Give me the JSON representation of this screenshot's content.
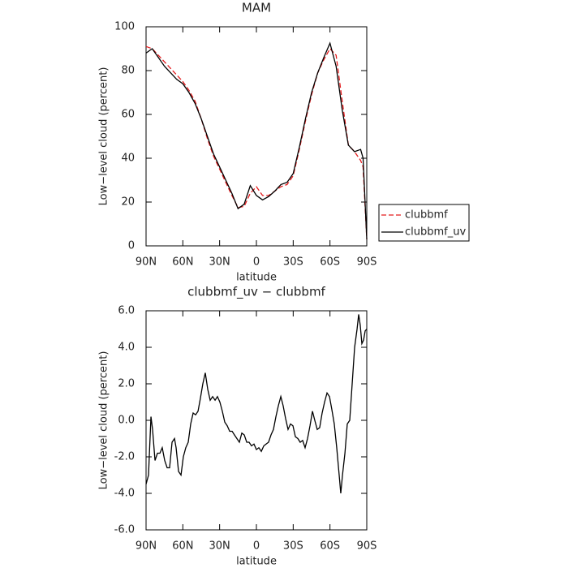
{
  "chart_data": [
    {
      "type": "line",
      "title": "MAM",
      "xlabel": "latitude",
      "ylabel": "Low−level cloud (percent)",
      "x": [
        90,
        85,
        80,
        75,
        70,
        65,
        60,
        55,
        50,
        45,
        40,
        35,
        30,
        25,
        20,
        15,
        10,
        5,
        0,
        -5,
        -10,
        -15,
        -20,
        -25,
        -30,
        -35,
        -40,
        -45,
        -50,
        -55,
        -60,
        -65,
        -70,
        -75,
        -80,
        -85,
        -87,
        -90
      ],
      "series": [
        {
          "name": "clubbmf",
          "color": "#e41a1c",
          "linestyle": "dashed",
          "values": [
            91,
            90,
            87,
            84,
            81,
            78,
            75,
            71,
            66,
            58,
            49,
            41,
            35,
            29,
            23,
            17.5,
            18,
            24,
            27,
            23,
            23,
            25,
            27,
            28,
            32,
            44,
            57,
            69,
            79,
            85,
            90,
            87,
            66,
            46,
            43,
            39,
            36,
            3
          ]
        },
        {
          "name": "clubbmf_uv",
          "color": "#000000",
          "linestyle": "solid",
          "values": [
            88,
            90,
            86,
            82,
            79,
            76,
            74,
            70,
            65,
            58,
            50,
            42,
            36,
            30,
            24,
            17,
            19,
            27.5,
            23,
            21,
            22.5,
            25,
            28,
            29,
            33,
            45,
            58,
            70,
            79,
            86,
            92.5,
            82,
            62,
            46,
            43,
            44,
            40,
            3
          ]
        }
      ],
      "xlim": [
        90,
        -90
      ],
      "xticks": [
        {
          "value": 90,
          "label": "90N"
        },
        {
          "value": 60,
          "label": "60N"
        },
        {
          "value": 30,
          "label": "30N"
        },
        0,
        {
          "value": -30,
          "label": "30S"
        },
        {
          "value": -60,
          "label": "60S"
        },
        {
          "value": -90,
          "label": "90S"
        }
      ],
      "ylim": [
        0,
        100
      ],
      "yticks": [
        0,
        20,
        40,
        60,
        80,
        100
      ],
      "grid": false,
      "legend": "outside right"
    },
    {
      "type": "line",
      "title": "clubbmf_uv − clubbmf",
      "xlabel": "latitude",
      "ylabel": "Low−level cloud (percent)",
      "x": [
        90,
        88.0,
        86.0,
        84.7,
        82.7,
        80.7,
        78.7,
        76.8,
        74.8,
        72.8,
        70.8,
        68.8,
        66.8,
        65.5,
        63.5,
        61.5,
        59.6,
        57.6,
        55.6,
        53.6,
        51.6,
        49.6,
        47.6,
        45.7,
        43.7,
        41.7,
        39.7,
        37.7,
        35.7,
        33.7,
        31.8,
        29.8,
        27.8,
        25.8,
        23.8,
        21.8,
        19.8,
        17.9,
        15.9,
        13.9,
        11.9,
        9.9,
        7.9,
        6.0,
        4.0,
        2.0,
        0.0,
        -2.0,
        -4.0,
        -6.0,
        -7.9,
        -9.9,
        -11.9,
        -13.9,
        -15.9,
        -17.9,
        -19.9,
        -21.8,
        -23.8,
        -25.8,
        -27.8,
        -29.8,
        -31.8,
        -33.8,
        -35.7,
        -37.7,
        -39.7,
        -41.7,
        -43.7,
        -45.7,
        -47.6,
        -49.6,
        -51.6,
        -53.6,
        -55.6,
        -57.6,
        -59.6,
        -61.5,
        -63.5,
        -65.5,
        -67.5,
        -68.8,
        -70.2,
        -72.2,
        -74.1,
        -76.1,
        -78.1,
        -80.1,
        -82.1,
        -83.4,
        -84.7,
        -86.0,
        -87.4,
        -88.7,
        -90
      ],
      "series": [
        {
          "color": "#000000",
          "linestyle": "solid",
          "values": [
            -3.5,
            -3.0,
            0.2,
            -0.5,
            -2.2,
            -1.8,
            -1.8,
            -1.5,
            -2.2,
            -2.6,
            -2.6,
            -1.2,
            -1.0,
            -1.5,
            -2.8,
            -3.0,
            -2.0,
            -1.5,
            -1.2,
            -0.2,
            0.4,
            0.3,
            0.5,
            1.2,
            2.0,
            2.6,
            1.7,
            1.1,
            1.3,
            1.1,
            1.3,
            1.0,
            0.5,
            -0.1,
            -0.3,
            -0.6,
            -0.6,
            -0.8,
            -1.0,
            -1.2,
            -0.7,
            -0.8,
            -1.2,
            -1.2,
            -1.4,
            -1.3,
            -1.6,
            -1.5,
            -1.7,
            -1.4,
            -1.3,
            -1.2,
            -0.8,
            -0.5,
            0.2,
            0.8,
            1.3,
            0.8,
            0.1,
            -0.5,
            -0.2,
            -0.3,
            -0.9,
            -1.0,
            -1.2,
            -1.1,
            -1.5,
            -1.0,
            -0.3,
            0.5,
            0.0,
            -0.5,
            -0.4,
            0.4,
            1.0,
            1.5,
            1.3,
            0.6,
            -0.2,
            -1.5,
            -3.0,
            -4.0,
            -3.0,
            -1.8,
            -0.2,
            0.0,
            2.0,
            4.0,
            5.0,
            5.8,
            5.2,
            4.2,
            4.4,
            4.9,
            5.0
          ]
        }
      ],
      "xlim": [
        90,
        -90
      ],
      "xticks": [
        {
          "value": 90,
          "label": "90N"
        },
        {
          "value": 60,
          "label": "60N"
        },
        {
          "value": 30,
          "label": "30N"
        },
        0,
        {
          "value": -30,
          "label": "30S"
        },
        {
          "value": -60,
          "label": "60S"
        },
        {
          "value": -90,
          "label": "90S"
        }
      ],
      "ylim": [
        -6,
        6
      ],
      "yticks": [
        {
          "value": -6,
          "label": "-6.0"
        },
        {
          "value": -4,
          "label": "-4.0"
        },
        {
          "value": -2,
          "label": "-2.0"
        },
        {
          "value": 0,
          "label": "0.0"
        },
        {
          "value": 2,
          "label": "2.0"
        },
        {
          "value": 4,
          "label": "4.0"
        },
        {
          "value": 6,
          "label": "6.0"
        }
      ],
      "grid": false
    }
  ]
}
